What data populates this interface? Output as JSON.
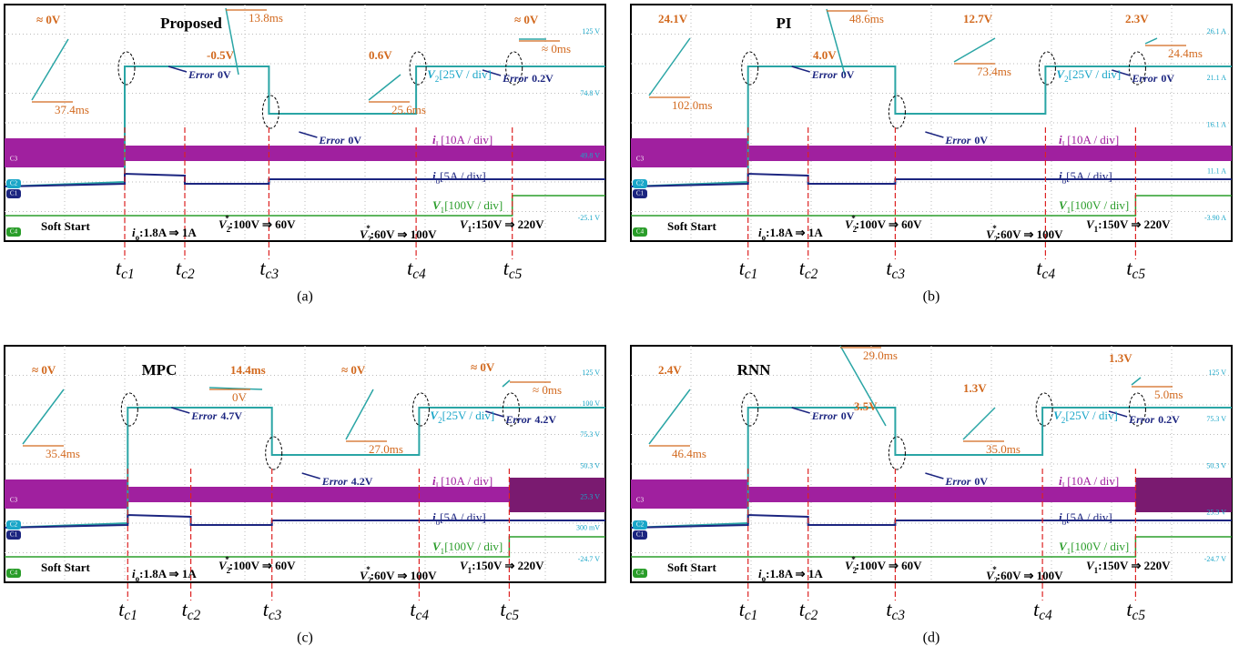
{
  "panels": [
    {
      "caption": "(a)",
      "title": "Proposed",
      "annotations": [
        "≈ 0V",
        "37.4ms",
        "-0.5V",
        "13.8ms",
        "0.6V",
        "25.6ms",
        "≈ 0V",
        "≈ 0ms"
      ],
      "errors": [
        {
          "label": "Error",
          "value": "0V"
        },
        {
          "label": "Error",
          "value": "0V"
        },
        {
          "label": "Error",
          "value": "0.2V"
        }
      ],
      "channels": [
        {
          "symbol": "V",
          "sub": "2",
          "scale": "[25V / div]"
        },
        {
          "symbol": "i",
          "sub": "L",
          "scale": "[10A / div]"
        },
        {
          "symbol": "i",
          "sub": "o",
          "scale": "[5A / div]"
        },
        {
          "symbol": "V",
          "sub": "1",
          "scale": "[100V / div]"
        }
      ],
      "events": [
        {
          "text": "Soft Start"
        },
        {
          "symbol": "i",
          "sub": "o",
          "text": ":1.8A ⇒ 1A"
        },
        {
          "symbol": "V",
          "sub": "2",
          "sup": "*",
          "text": ":100V ⇒ 60V"
        },
        {
          "symbol": "V",
          "sub": "2",
          "sup": "*",
          "text": ":60V ⇒ 100V"
        },
        {
          "symbol": "V",
          "sub": "1",
          "text": ":150V ⇒ 220V"
        }
      ],
      "scale_labels": [
        "125 V",
        "74.8 V",
        "49.8 V",
        "-25.1 V"
      ],
      "channel_tags": [
        "C3",
        "C2",
        "C1",
        "C4"
      ],
      "time_markers": [
        {
          "symbol": "t",
          "sub": "c1"
        },
        {
          "symbol": "t",
          "sub": "c2"
        },
        {
          "symbol": "t",
          "sub": "c3"
        },
        {
          "symbol": "t",
          "sub": "c4"
        },
        {
          "symbol": "t",
          "sub": "c5"
        }
      ]
    },
    {
      "caption": "(b)",
      "title": "PI",
      "annotations": [
        "24.1V",
        "102.0ms",
        "4.0V",
        "48.6ms",
        "12.7V",
        "73.4ms",
        "2.3V",
        "24.4ms"
      ],
      "errors": [
        {
          "label": "Error",
          "value": "0V"
        },
        {
          "label": "Error",
          "value": "0V"
        },
        {
          "label": "Error",
          "value": "0V"
        }
      ],
      "channels": [
        {
          "symbol": "V",
          "sub": "2",
          "scale": "[25V / div]"
        },
        {
          "symbol": "i",
          "sub": "L",
          "scale": "[10A / div]"
        },
        {
          "symbol": "i",
          "sub": "o",
          "scale": "[5A / div]"
        },
        {
          "symbol": "V",
          "sub": "1",
          "scale": "[100V / div]"
        }
      ],
      "events": [
        {
          "text": "Soft Start"
        },
        {
          "symbol": "i",
          "sub": "o",
          "text": ":1.8A ⇒ 1A"
        },
        {
          "symbol": "V",
          "sub": "2",
          "sup": "*",
          "text": ":100V ⇒ 60V"
        },
        {
          "symbol": "V",
          "sub": "2",
          "sup": "*",
          "text": ":60V ⇒ 100V"
        },
        {
          "symbol": "V",
          "sub": "1",
          "text": ":150V ⇒ 220V"
        }
      ],
      "scale_labels": [
        "26.1 A",
        "21.1 A",
        "16.1 A",
        "11.1 A",
        "-3.90 A"
      ],
      "channel_tags": [
        "C3",
        "C2",
        "C1",
        "C4"
      ],
      "time_markers": [
        {
          "symbol": "t",
          "sub": "c1"
        },
        {
          "symbol": "t",
          "sub": "c2"
        },
        {
          "symbol": "t",
          "sub": "c3"
        },
        {
          "symbol": "t",
          "sub": "c4"
        },
        {
          "symbol": "t",
          "sub": "c5"
        }
      ]
    },
    {
      "caption": "(c)",
      "title": "MPC",
      "annotations": [
        "≈ 0V",
        "35.4ms",
        "14.4ms",
        "0V",
        "≈ 0V",
        "27.0ms",
        "≈ 0V",
        "≈ 0ms"
      ],
      "errors": [
        {
          "label": "Error",
          "value": "4.7V"
        },
        {
          "label": "Error",
          "value": "4.2V"
        },
        {
          "label": "Error",
          "value": "4.2V"
        }
      ],
      "channels": [
        {
          "symbol": "V",
          "sub": "2",
          "scale": "[25V / div]"
        },
        {
          "symbol": "i",
          "sub": "L",
          "scale": "[10A / div]"
        },
        {
          "symbol": "i",
          "sub": "o",
          "scale": "[5A / div]"
        },
        {
          "symbol": "V",
          "sub": "1",
          "scale": "[100V / div]"
        }
      ],
      "events": [
        {
          "text": "Soft Start"
        },
        {
          "symbol": "i",
          "sub": "o",
          "text": ":1.8A ⇒ 1A"
        },
        {
          "symbol": "V",
          "sub": "2",
          "sup": "*",
          "text": ":100V ⇒ 60V"
        },
        {
          "symbol": "V",
          "sub": "2",
          "sup": "*",
          "text": ":60V ⇒ 100V"
        },
        {
          "symbol": "V",
          "sub": "1",
          "text": ":150V ⇒ 220V"
        }
      ],
      "scale_labels": [
        "125 V",
        "100 V",
        "75.3 V",
        "50.3 V",
        "25.3 V",
        "300 mV",
        "-24.7 V"
      ],
      "channel_tags": [
        "C3",
        "C2",
        "C1",
        "C4"
      ],
      "time_markers": [
        {
          "symbol": "t",
          "sub": "c1"
        },
        {
          "symbol": "t",
          "sub": "c2"
        },
        {
          "symbol": "t",
          "sub": "c3"
        },
        {
          "symbol": "t",
          "sub": "c4"
        },
        {
          "symbol": "t",
          "sub": "c5"
        }
      ]
    },
    {
      "caption": "(d)",
      "title": "RNN",
      "annotations": [
        "2.4V",
        "46.4ms",
        "3.5V",
        "29.0ms",
        "1.3V",
        "35.0ms",
        "1.3V",
        "5.0ms"
      ],
      "errors": [
        {
          "label": "Error",
          "value": "0V"
        },
        {
          "label": "Error",
          "value": "0V"
        },
        {
          "label": "Error",
          "value": "0.2V"
        }
      ],
      "channels": [
        {
          "symbol": "V",
          "sub": "2",
          "scale": "[25V / div]"
        },
        {
          "symbol": "i",
          "sub": "L",
          "scale": "[10A / div]"
        },
        {
          "symbol": "i",
          "sub": "o",
          "scale": "[5A / div]"
        },
        {
          "symbol": "V",
          "sub": "1",
          "scale": "[100V / div]"
        }
      ],
      "events": [
        {
          "text": "Soft Start"
        },
        {
          "symbol": "i",
          "sub": "o",
          "text": ":1.8A ⇒ 1A"
        },
        {
          "symbol": "V",
          "sub": "2",
          "sup": "*",
          "text": ":100V ⇒ 60V"
        },
        {
          "symbol": "V",
          "sub": "2",
          "sup": "*",
          "text": ":60V ⇒ 100V"
        },
        {
          "symbol": "V",
          "sub": "1",
          "text": ":150V ⇒ 220V"
        }
      ],
      "scale_labels": [
        "125 V",
        "75.3 V",
        "50.3 V",
        "25.3 V",
        "-24.7 V"
      ],
      "channel_tags": [
        "C3",
        "C2",
        "C1",
        "C4"
      ],
      "time_markers": [
        {
          "symbol": "t",
          "sub": "c1"
        },
        {
          "symbol": "t",
          "sub": "c2"
        },
        {
          "symbol": "t",
          "sub": "c3"
        },
        {
          "symbol": "t",
          "sub": "c4"
        },
        {
          "symbol": "t",
          "sub": "c5"
        }
      ]
    }
  ]
}
